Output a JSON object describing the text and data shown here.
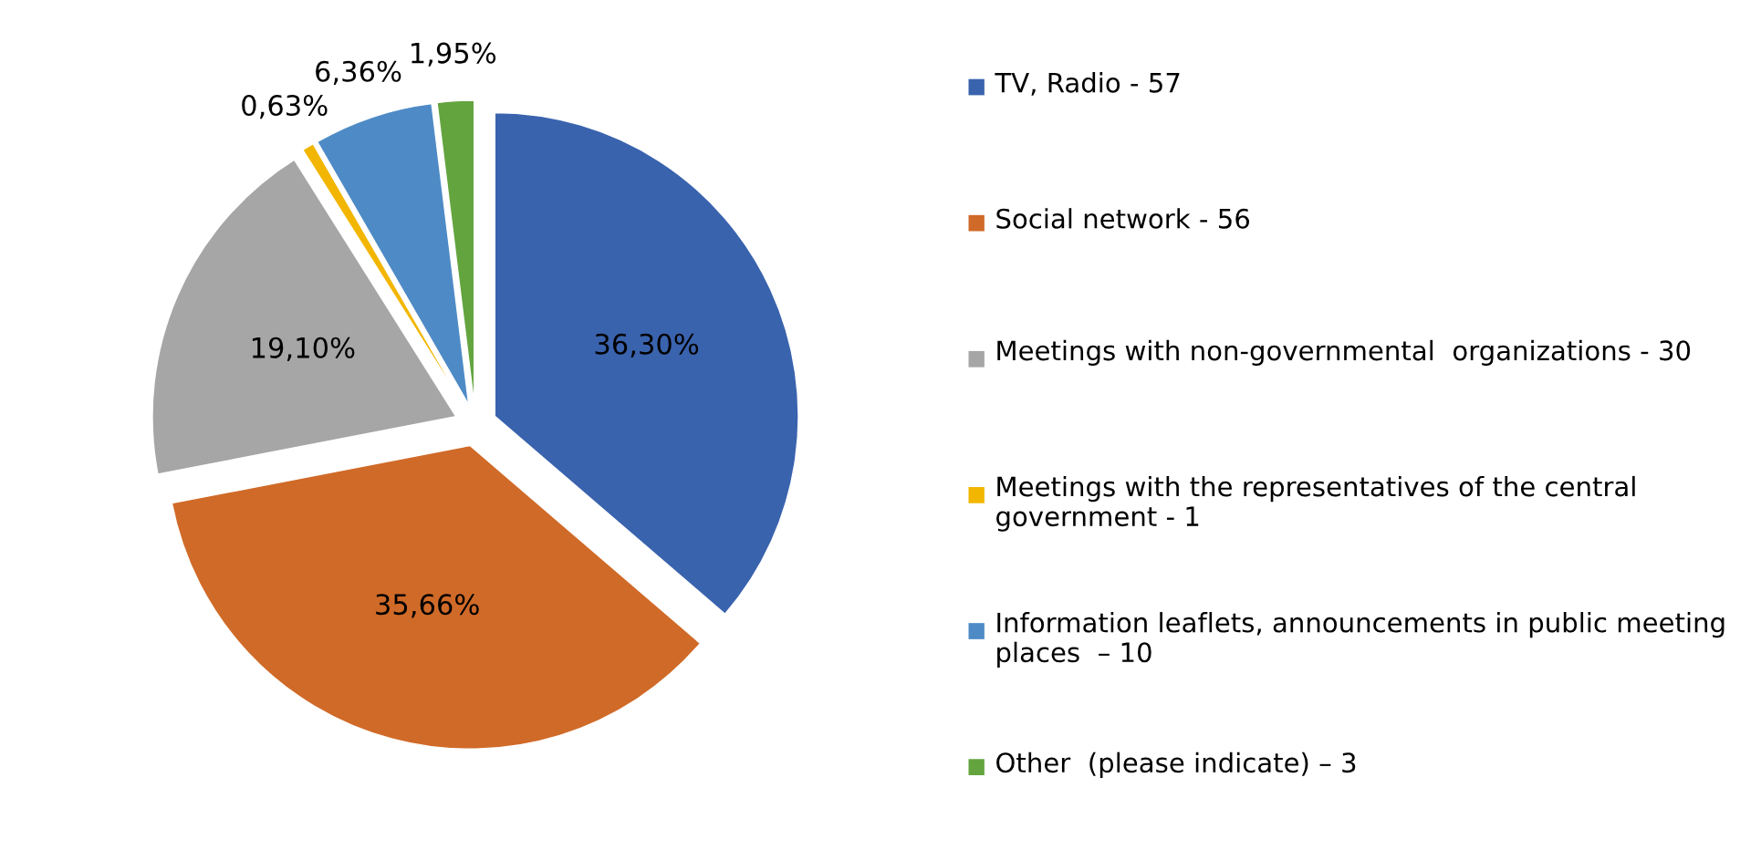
{
  "chart_data": {
    "type": "pie",
    "categories": [
      "TV, Radio - 57",
      "Social network - 56",
      "Meetings with non-governmental  organizations - 30",
      "Meetings with the representatives of the central government - 1",
      "Information leaflets, announcements in public meeting places  – 10",
      "Other  (please indicate) – 3"
    ],
    "values": [
      36.3,
      35.66,
      19.1,
      0.63,
      6.36,
      1.95
    ],
    "value_labels": [
      "36,30%",
      "35,66%",
      "19,10%",
      "0,63%",
      "6,36%",
      "1,95%"
    ],
    "colors": [
      "#3a63ae",
      "#d06a28",
      "#a6a6a6",
      "#f2b600",
      "#4e8bc6",
      "#63a43f"
    ],
    "legend": "right"
  }
}
